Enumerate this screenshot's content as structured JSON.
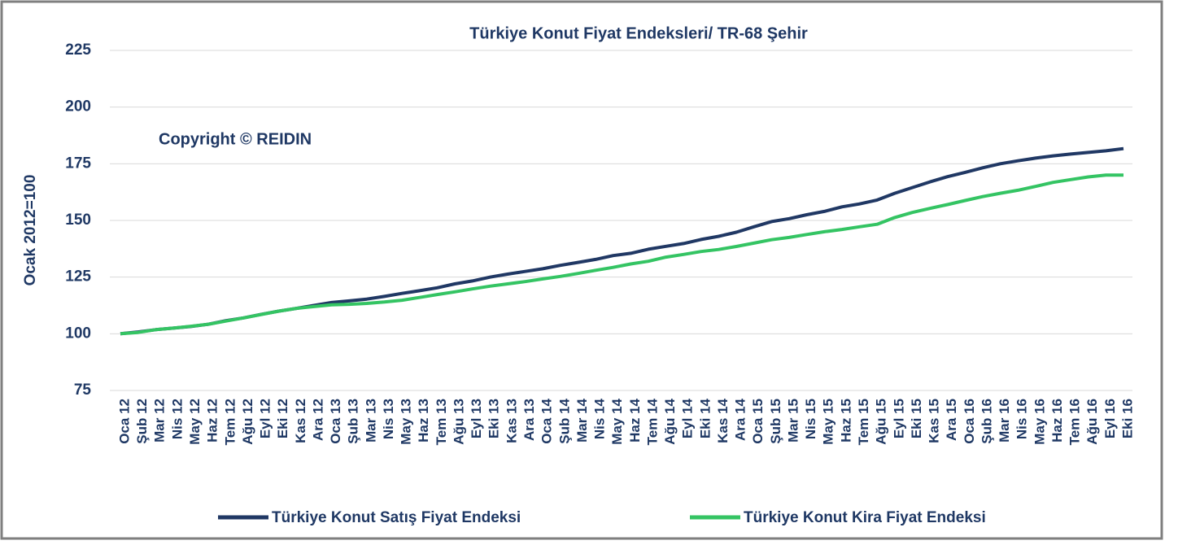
{
  "chart_data": {
    "type": "line",
    "title": "Türkiye Konut Fiyat Endeksleri/ TR-68 Şehir",
    "annotation": "Copyright © REIDIN",
    "y_label": "Ocak 2012=100",
    "categories": [
      "Oca 12",
      "Şub 12",
      "Mar 12",
      "Nis 12",
      "May 12",
      "Haz 12",
      "Tem 12",
      "Ağu 12",
      "Eyl 12",
      "Eki 12",
      "Kas 12",
      "Ara 12",
      "Oca 13",
      "Şub 13",
      "Mar 13",
      "Nis 13",
      "May 13",
      "Haz 13",
      "Tem 13",
      "Ağu 13",
      "Eyl 13",
      "Eki 13",
      "Kas 13",
      "Ara 13",
      "Oca 14",
      "Şub 14",
      "Mar 14",
      "Nis 14",
      "May 14",
      "Haz 14",
      "Tem 14",
      "Ağu 14",
      "Eyl 14",
      "Eki 14",
      "Kas 14",
      "Ara 14",
      "Oca 15",
      "Şub 15",
      "Mar 15",
      "Nis 15",
      "May 15",
      "Haz 15",
      "Tem 15",
      "Ağu 15",
      "Eyl 15",
      "Eki 15",
      "Kas 15",
      "Ara 15",
      "Oca 16",
      "Şub 16",
      "Mar 16",
      "Nis 16",
      "May 16",
      "Haz 16",
      "Tem 16",
      "Ağu 16",
      "Eyl 16",
      "Eki 16"
    ],
    "series": [
      {
        "name": "Türkiye Konut Satış Fiyat Endeksi",
        "color": "#203864",
        "values": [
          100,
          100.8,
          101.8,
          102.5,
          103.2,
          104.2,
          105.8,
          107,
          108.6,
          110,
          111.2,
          112.5,
          113.8,
          114.5,
          115.3,
          116.5,
          117.8,
          119,
          120.3,
          122,
          123.3,
          125,
          126.3,
          127.5,
          128.7,
          130.2,
          131.5,
          132.8,
          134.5,
          135.5,
          137.3,
          138.6,
          139.8,
          141.6,
          143,
          144.8,
          147.2,
          149.5,
          150.8,
          152.5,
          154,
          156,
          157.3,
          159,
          162,
          164.5,
          167,
          169.3,
          171.2,
          173.2,
          175,
          176.3,
          177.5,
          178.5,
          179.3,
          180,
          180.7,
          181.7
        ]
      },
      {
        "name": "Türkiye Konut Kira Fiyat Endeksi",
        "color": "#34c463",
        "values": [
          100,
          100.6,
          101.8,
          102.5,
          103.3,
          104.2,
          105.6,
          107,
          108.5,
          110,
          111.2,
          112,
          112.8,
          113,
          113.4,
          114,
          114.8,
          116,
          117.3,
          118.5,
          119.8,
          121,
          122,
          123,
          124.2,
          125.3,
          126.6,
          128,
          129.3,
          130.8,
          132,
          133.8,
          135,
          136.3,
          137.2,
          138.5,
          140,
          141.5,
          142.5,
          143.8,
          145,
          146,
          147.2,
          148.3,
          151.3,
          153.5,
          155.3,
          157,
          158.8,
          160.5,
          162,
          163.3,
          165,
          166.8,
          168,
          169.2,
          170,
          170
        ]
      }
    ],
    "ylim": [
      75,
      225
    ],
    "yticks": [
      75,
      100,
      125,
      150,
      175,
      200,
      225
    ],
    "grid": true,
    "legend": "bottom"
  }
}
